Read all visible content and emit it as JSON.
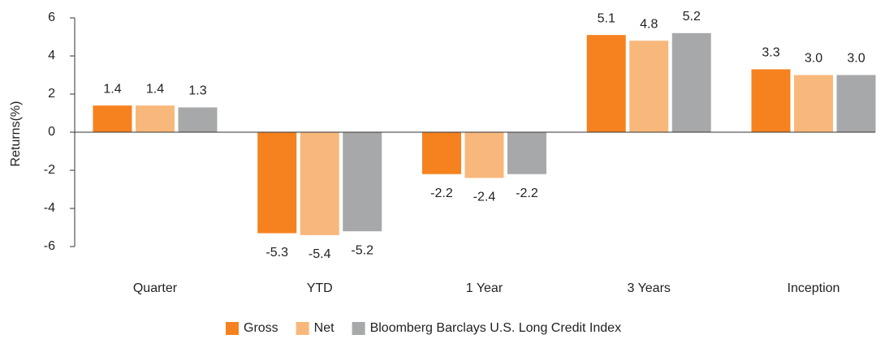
{
  "chart_data": {
    "type": "bar",
    "categories": [
      "Quarter",
      "YTD",
      "1 Year",
      "3 Years",
      "Inception"
    ],
    "series": [
      {
        "name": "Gross",
        "color": "#f5821f",
        "values": [
          1.4,
          -5.3,
          -2.2,
          5.1,
          3.3
        ],
        "value_labels": [
          "1.4",
          "-5.3",
          "-2.2",
          "5.1",
          "3.3"
        ]
      },
      {
        "name": "Net",
        "color": "#f9b87b",
        "values": [
          1.4,
          -5.4,
          -2.4,
          4.8,
          3.0
        ],
        "value_labels": [
          "1.4",
          "-5.4",
          "-2.4",
          "4.8",
          "3.0"
        ]
      },
      {
        "name": "Bloomberg Barclays U.S. Long Credit Index",
        "color": "#a7a8aa",
        "values": [
          1.3,
          -5.2,
          -2.2,
          5.2,
          3.0
        ],
        "value_labels": [
          "1.3",
          "-5.2",
          "-2.2",
          "5.2",
          "3.0"
        ]
      }
    ],
    "ylabel": "Returns(%)",
    "ylim": [
      -6,
      6
    ],
    "yticks": [
      -6,
      -4,
      -2,
      0,
      2,
      4,
      6
    ],
    "legend": "bottom"
  }
}
